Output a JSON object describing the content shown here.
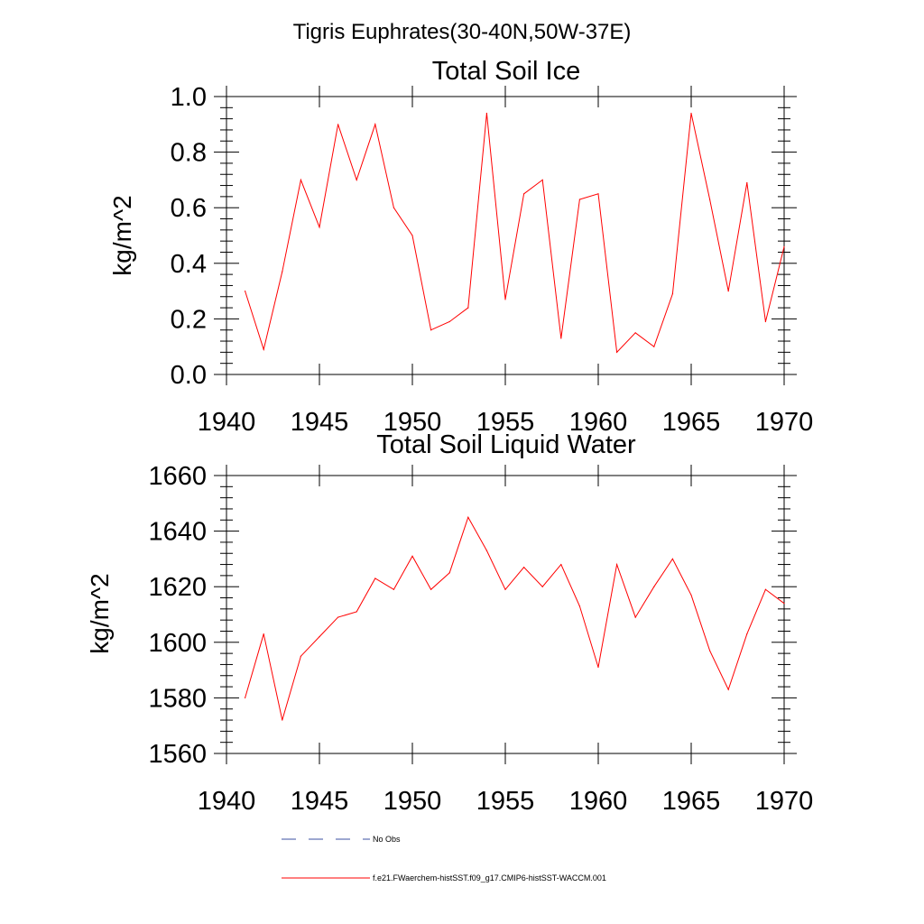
{
  "figure": {
    "suptitle": "Tigris Euphrates(30-40N,50W-37E)"
  },
  "colors": {
    "model_line": "#ff0000",
    "obs_line": "#3b4fa0",
    "axes": "#000000"
  },
  "legend": {
    "placement": "bottom",
    "entries": [
      {
        "label": "No Obs",
        "style": "dashed",
        "color": "#3b4fa0"
      },
      {
        "label": "f.e21.FWaerchem-histSST.f09_g17.CMIP6-histSST-WACCM.001",
        "style": "solid",
        "color": "#ff0000"
      }
    ]
  },
  "chart_data": [
    {
      "type": "line",
      "title": "Total Soil Ice",
      "xlabel": "",
      "ylabel": "kg/m^2",
      "xlim": [
        1940,
        1970
      ],
      "ylim": [
        0.0,
        1.0
      ],
      "xticks": [
        1940,
        1945,
        1950,
        1955,
        1960,
        1965,
        1970
      ],
      "yticks": [
        0.0,
        0.2,
        0.4,
        0.6,
        0.8,
        1.0
      ],
      "ytick_labels": [
        "0.0",
        "0.2",
        "0.4",
        "0.6",
        "0.8",
        "1.0"
      ],
      "grid": false,
      "x": [
        1941,
        1942,
        1943,
        1944,
        1945,
        1946,
        1947,
        1948,
        1949,
        1950,
        1951,
        1952,
        1953,
        1954,
        1955,
        1956,
        1957,
        1958,
        1959,
        1960,
        1961,
        1962,
        1963,
        1964,
        1965,
        1966,
        1967,
        1968,
        1969,
        1970
      ],
      "series": [
        {
          "name": "f.e21.FWaerchem-histSST.f09_g17.CMIP6-histSST-WACCM.001",
          "values": [
            0.3,
            0.09,
            0.37,
            0.7,
            0.53,
            0.9,
            0.7,
            0.9,
            0.6,
            0.5,
            0.16,
            0.19,
            0.24,
            0.94,
            0.27,
            0.65,
            0.7,
            0.13,
            0.63,
            0.65,
            0.08,
            0.15,
            0.1,
            0.29,
            0.94,
            0.63,
            0.3,
            0.69,
            0.19,
            0.46
          ]
        }
      ]
    },
    {
      "type": "line",
      "title": "Total Soil Liquid Water",
      "xlabel": "",
      "ylabel": "kg/m^2",
      "xlim": [
        1940,
        1970
      ],
      "ylim": [
        1560,
        1660
      ],
      "xticks": [
        1940,
        1945,
        1950,
        1955,
        1960,
        1965,
        1970
      ],
      "yticks": [
        1560,
        1580,
        1600,
        1620,
        1640,
        1660
      ],
      "ytick_labels": [
        "1560",
        "1580",
        "1600",
        "1620",
        "1640",
        "1660"
      ],
      "grid": false,
      "x": [
        1941,
        1942,
        1943,
        1944,
        1945,
        1946,
        1947,
        1948,
        1949,
        1950,
        1951,
        1952,
        1953,
        1954,
        1955,
        1956,
        1957,
        1958,
        1959,
        1960,
        1961,
        1962,
        1963,
        1964,
        1965,
        1966,
        1967,
        1968,
        1969,
        1970
      ],
      "series": [
        {
          "name": "f.e21.FWaerchem-histSST.f09_g17.CMIP6-histSST-WACCM.001",
          "values": [
            1580,
            1603,
            1572,
            1595,
            1602,
            1609,
            1611,
            1623,
            1619,
            1631,
            1619,
            1625,
            1645,
            1633,
            1619,
            1627,
            1620,
            1628,
            1613,
            1591,
            1628,
            1609,
            1620,
            1630,
            1617,
            1597,
            1583,
            1603,
            1619,
            1614
          ]
        }
      ]
    }
  ]
}
